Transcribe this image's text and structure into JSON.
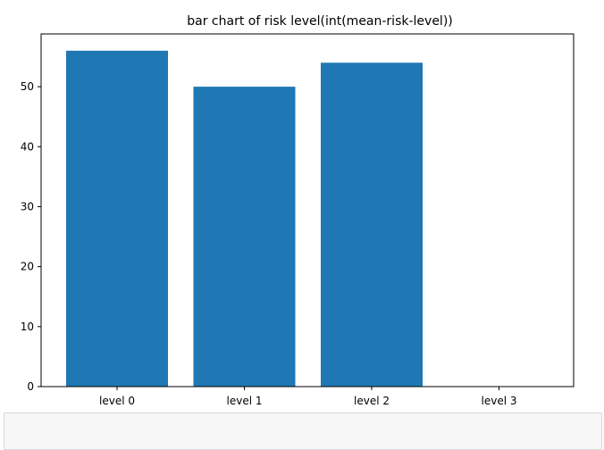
{
  "chart_data": {
    "type": "bar",
    "title": "bar chart of risk level(int(mean-risk-level))",
    "xlabel": "",
    "ylabel": "",
    "categories": [
      "level 0",
      "level 1",
      "level 2",
      "level 3"
    ],
    "values": [
      56,
      50,
      54,
      0
    ],
    "ylim": [
      0,
      58.8
    ],
    "yticks": [
      0,
      10,
      20,
      30,
      40,
      50
    ],
    "bar_color": "#1f77b4",
    "grid": false
  }
}
